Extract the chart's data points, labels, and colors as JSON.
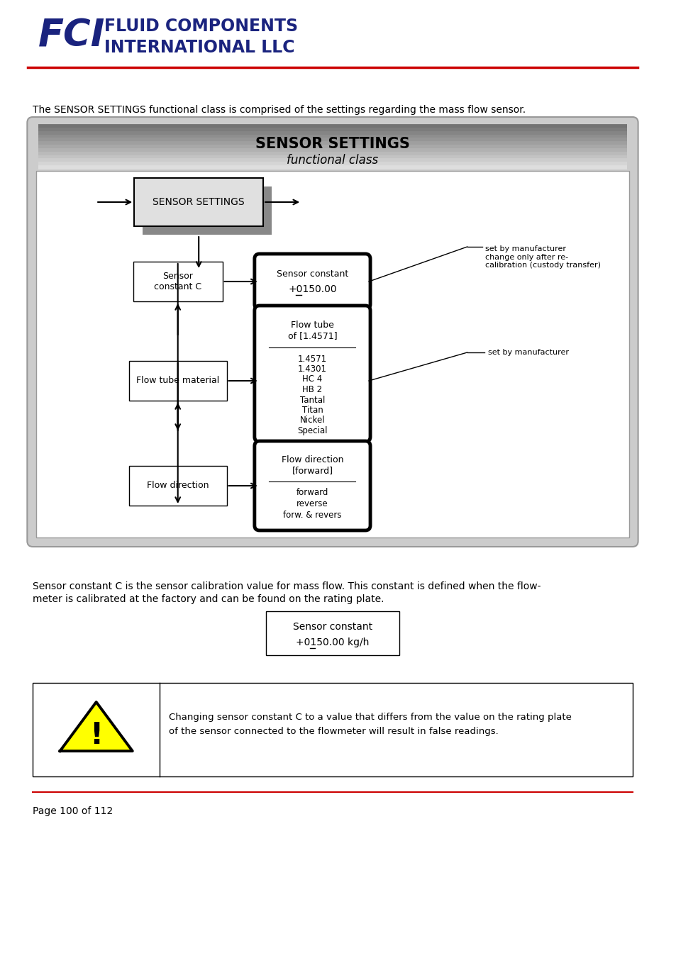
{
  "page_bg": "#ffffff",
  "logo_text1": "FLUID COMPONENTS",
  "logo_text2": "INTERNATIONAL LLC",
  "logo_color": "#1a237e",
  "red_line_color": "#cc0000",
  "intro_text": "The SENSOR SETTINGS functional class is comprised of the settings regarding the mass flow sensor.",
  "diagram_title1": "SENSOR SETTINGS",
  "diagram_title2": "functional class",
  "sensor_settings_box_label": "SENSOR SETTINGS",
  "sensor_c_label": "Sensor\nconstant C",
  "sensor_constant_box_label1": "Sensor constant",
  "sensor_constant_box_label2": "+0150.00",
  "sensor_note": "set by manufacturer\nchange only after re-\ncalibration (custody transfer)",
  "flow_tube_box1": "Flow tube",
  "flow_tube_box2": "of [1.4571]",
  "flow_tube_list": [
    "1.4571",
    "1.4301",
    "HC 4",
    "HB 2",
    "Tantal",
    "Titan",
    "Nickel",
    "Special"
  ],
  "flow_tube_note": "set by manufacturer",
  "flow_tube_material_label": "Flow tube material",
  "flow_direction_box1": "Flow direction",
  "flow_direction_box2": "[forward]",
  "flow_direction_list": [
    "forward",
    "reverse",
    "forw. & revers"
  ],
  "flow_direction_label": "Flow direction",
  "sensor_const_desc1": "Sensor constant C is the sensor calibration value for mass flow. This constant is defined when the flow-",
  "sensor_const_desc2": "meter is calibrated at the factory and can be found on the rating plate.",
  "sensor_const_box1": "Sensor constant",
  "sensor_const_box2": "+0150.00 kg/h",
  "warning_text1": "Changing sensor constant C to a value that differs from the value on the rating plate",
  "warning_text2": "of the sensor connected to the flowmeter will result in false readings.",
  "page_text": "Page 100 of 112"
}
